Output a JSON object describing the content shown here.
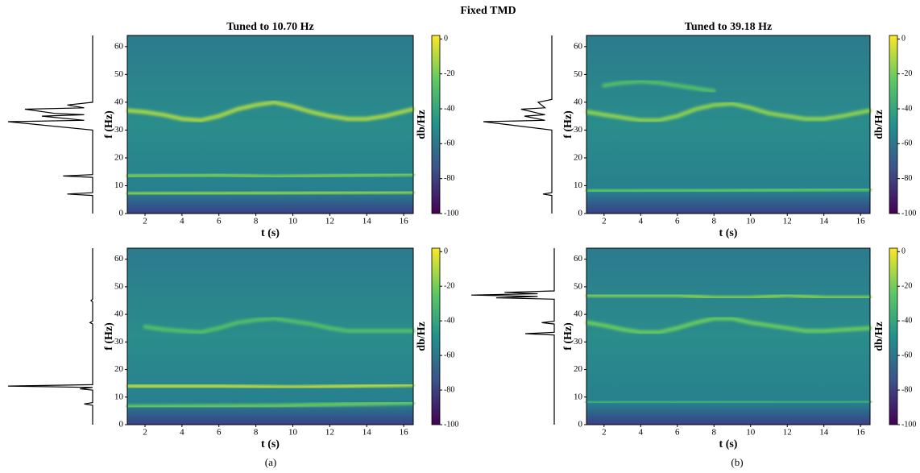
{
  "title": "Fixed TMD",
  "captions": [
    "(a)",
    "(b)"
  ],
  "chart_data": [
    {
      "type": "spectrogram",
      "title": "Tuned to 10.70 Hz",
      "xlabel": "t (s)",
      "ylabel": "f (Hz)",
      "xlim": [
        1.04,
        16.52
      ],
      "ylim": [
        0,
        64
      ],
      "xticks": [
        2,
        4,
        6,
        8,
        10,
        12,
        14,
        16
      ],
      "yticks": [
        0,
        10,
        20,
        30,
        40,
        50,
        60
      ],
      "ridges": [
        {
          "x": [
            1.1,
            2,
            3,
            4,
            5,
            6,
            7,
            8,
            9,
            10,
            11,
            12,
            13,
            14,
            15,
            16.5
          ],
          "values": [
            37,
            36.5,
            35.5,
            34,
            33.5,
            35,
            37.5,
            39,
            40,
            38.5,
            36.5,
            35,
            34,
            34,
            35,
            37.5
          ],
          "level": -12
        },
        {
          "x": [
            1.1,
            6,
            9,
            16.5
          ],
          "values": [
            13.5,
            13.8,
            13.2,
            14.2
          ],
          "level": -20
        },
        {
          "x": [
            1.1,
            8,
            16.5
          ],
          "values": [
            7,
            7.3,
            7.8
          ],
          "level": -16
        }
      ],
      "spectrum": {
        "f": [
          0,
          6.5,
          7,
          7.5,
          13,
          13.5,
          14,
          30,
          33,
          33.5,
          35,
          35.5,
          36,
          37.5,
          38,
          39,
          40,
          64
        ],
        "amplitude": [
          0,
          0,
          0.3,
          0,
          0,
          0.35,
          0,
          0,
          1.0,
          0.1,
          0.6,
          0.1,
          0.45,
          0.8,
          0.1,
          0.3,
          0,
          0
        ]
      },
      "colorbar": {
        "label": "db/Hz",
        "clim": [
          -100,
          2
        ],
        "ticks": [
          0,
          -20,
          -40,
          -60,
          -80,
          -100
        ]
      }
    },
    {
      "type": "spectrogram",
      "title": "Tuned to 39.18 Hz",
      "xlabel": "t (s)",
      "ylabel": "f (Hz)",
      "xlim": [
        1.04,
        16.52
      ],
      "ylim": [
        0,
        64
      ],
      "xticks": [
        2,
        4,
        6,
        8,
        10,
        12,
        14,
        16
      ],
      "yticks": [
        0,
        10,
        20,
        30,
        40,
        50,
        60
      ],
      "ridges": [
        {
          "x": [
            1.1,
            2,
            3,
            4,
            5,
            6,
            7,
            8,
            9,
            10,
            11,
            12,
            13,
            14,
            15,
            16.5
          ],
          "values": [
            36.5,
            35.5,
            34.5,
            33.5,
            33.5,
            35,
            37.5,
            39,
            39.5,
            38,
            36,
            35,
            34,
            34,
            35,
            37
          ],
          "level": -16
        },
        {
          "x": [
            2,
            3,
            4,
            5,
            6,
            7,
            8
          ],
          "values": [
            46,
            47,
            47.5,
            47,
            46,
            45,
            44
          ],
          "level": -28
        },
        {
          "x": [
            1.1,
            8,
            16.5
          ],
          "values": [
            8,
            8.2,
            8.8
          ],
          "level": -24
        }
      ],
      "spectrum": {
        "f": [
          0,
          6.5,
          7,
          7.5,
          30,
          33,
          33.5,
          35,
          35.5,
          37.5,
          38,
          40,
          41,
          64
        ],
        "amplitude": [
          0,
          0,
          0.13,
          0,
          0,
          1.0,
          0.1,
          0.4,
          0.1,
          0.45,
          0.1,
          0.2,
          0,
          0
        ]
      },
      "colorbar": {
        "label": "db/Hz",
        "clim": [
          -100,
          2
        ],
        "ticks": [
          0,
          -20,
          -40,
          -60,
          -80,
          -100
        ]
      }
    },
    {
      "type": "spectrogram",
      "xlabel": "t (s)",
      "ylabel": "f (Hz)",
      "xlim": [
        1.04,
        16.52
      ],
      "ylim": [
        0,
        64
      ],
      "xticks": [
        2,
        4,
        6,
        8,
        10,
        12,
        14,
        16
      ],
      "yticks": [
        0,
        10,
        20,
        30,
        40,
        50,
        60
      ],
      "ridges": [
        {
          "x": [
            2,
            3,
            4,
            5,
            6,
            7,
            8,
            9,
            10,
            11,
            12,
            13,
            14,
            16.5
          ],
          "values": [
            35.5,
            34.5,
            34,
            33.5,
            35,
            37,
            38,
            38.5,
            37.5,
            36.5,
            35,
            34,
            34,
            34
          ],
          "level": -28
        },
        {
          "x": [
            1.1,
            6,
            10,
            16.5
          ],
          "values": [
            14,
            14,
            13.5,
            14.5
          ],
          "level": -8
        },
        {
          "x": [
            1.1,
            9,
            16.5
          ],
          "values": [
            6.5,
            6.8,
            8
          ],
          "level": -22
        }
      ],
      "spectrum": {
        "f": [
          0,
          7,
          7.5,
          8,
          12.5,
          13,
          13.5,
          14,
          14.5,
          36.5,
          37,
          37.5,
          44.5,
          45,
          45.5,
          64
        ],
        "amplitude": [
          0,
          0,
          0.1,
          0,
          0,
          0.15,
          0,
          1.0,
          0,
          0,
          0.03,
          0,
          0,
          0.02,
          0,
          0
        ]
      },
      "colorbar": {
        "label": "db/Hz",
        "clim": [
          -100,
          2
        ],
        "ticks": [
          0,
          -20,
          -40,
          -60,
          -80,
          -100
        ]
      }
    },
    {
      "type": "spectrogram",
      "xlabel": "t (s)",
      "ylabel": "f (Hz)",
      "xlim": [
        1.04,
        16.52
      ],
      "ylim": [
        0,
        64
      ],
      "xticks": [
        2,
        4,
        6,
        8,
        10,
        12,
        14,
        16
      ],
      "yticks": [
        0,
        10,
        20,
        30,
        40,
        50,
        60
      ],
      "ridges": [
        {
          "x": [
            1.1,
            2,
            4,
            6,
            8,
            10,
            12,
            14,
            16.5
          ],
          "values": [
            47,
            47,
            47,
            47,
            46,
            46,
            47,
            46,
            46
          ],
          "level": -18
        },
        {
          "x": [
            1.1,
            2,
            3,
            4,
            5,
            6,
            7,
            8,
            9,
            10,
            11,
            12,
            13,
            14,
            16.5
          ],
          "values": [
            37,
            36,
            34.5,
            33.5,
            33.5,
            35,
            37,
            38.5,
            38.5,
            37,
            36,
            35,
            34,
            34,
            35
          ],
          "level": -22
        },
        {
          "x": [
            1.1,
            16.5
          ],
          "values": [
            8,
            8.5
          ],
          "level": -35
        }
      ],
      "spectrum": {
        "f": [
          0,
          32.5,
          33,
          33.5,
          36.5,
          37,
          37.5,
          45.5,
          46,
          46.5,
          47,
          47.5,
          48,
          48.5,
          64
        ],
        "amplitude": [
          0,
          0,
          0.35,
          0,
          0,
          0.15,
          0,
          0,
          0.7,
          0.2,
          1.0,
          0.2,
          0.6,
          0,
          0
        ]
      },
      "colorbar": {
        "label": "db/Hz",
        "clim": [
          -100,
          2
        ],
        "ticks": [
          0,
          -20,
          -40,
          -60,
          -80,
          -100
        ]
      }
    }
  ]
}
